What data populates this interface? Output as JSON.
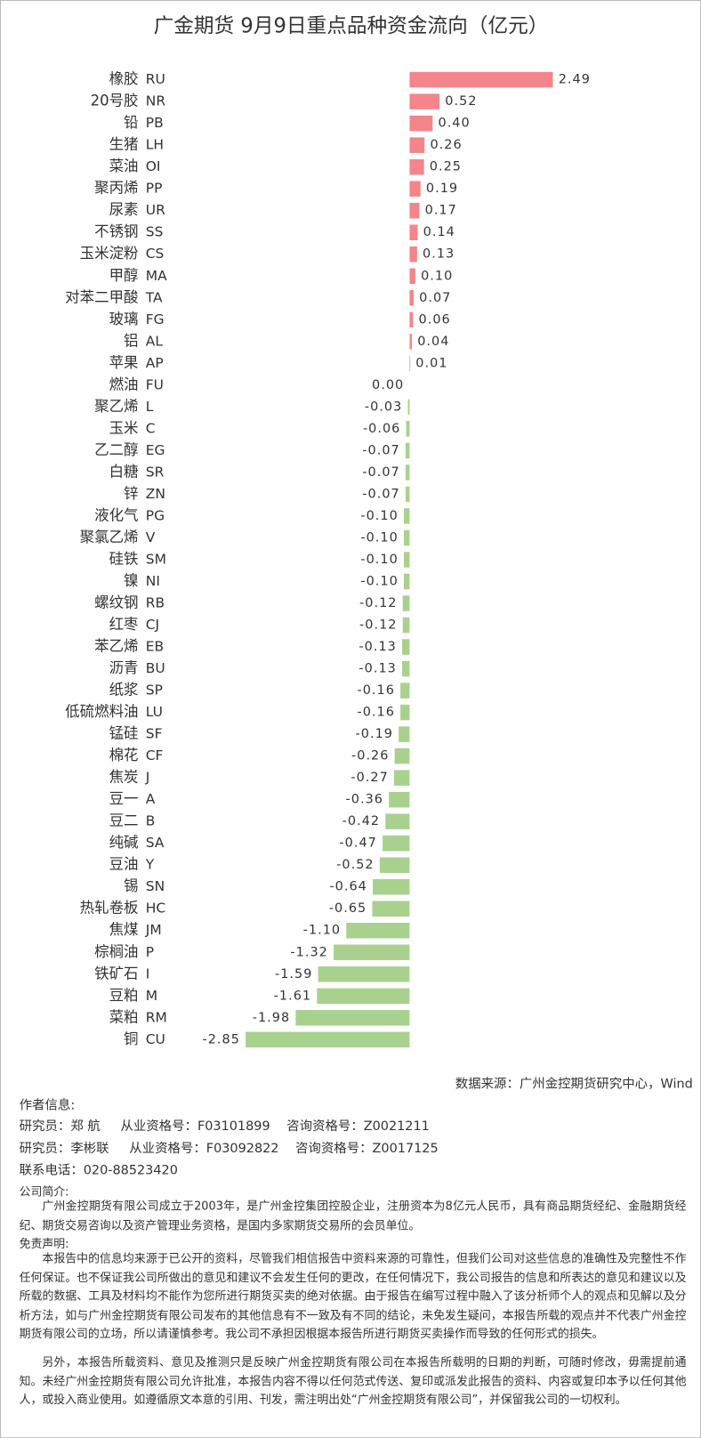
{
  "chart_data": {
    "type": "bar",
    "orientation": "horizontal",
    "title": "广金期货 9月9日重点品种资金流向（亿元）",
    "categories": [
      "橡胶",
      "20号胶",
      "铅",
      "生猪",
      "菜油",
      "聚丙烯",
      "尿素",
      "不锈钢",
      "玉米淀粉",
      "甲醇",
      "对苯二甲酸",
      "玻璃",
      "铝",
      "苹果",
      "燃油",
      "聚乙烯",
      "玉米",
      "乙二醇",
      "白糖",
      "锌",
      "液化气",
      "聚氯乙烯",
      "硅铁",
      "镍",
      "螺纹钢",
      "红枣",
      "苯乙烯",
      "沥青",
      "纸浆",
      "低硫燃料油",
      "锰硅",
      "棉花",
      "焦炭",
      "豆一",
      "豆二",
      "纯碱",
      "豆油",
      "锡",
      "热轧卷板",
      "焦煤",
      "棕榈油",
      "铁矿石",
      "豆粕",
      "菜粕",
      "铜"
    ],
    "codes": [
      "RU",
      "NR",
      "PB",
      "LH",
      "OI",
      "PP",
      "UR",
      "SS",
      "CS",
      "MA",
      "TA",
      "FG",
      "AL",
      "AP",
      "FU",
      "L",
      "C",
      "EG",
      "SR",
      "ZN",
      "PG",
      "V",
      "SM",
      "NI",
      "RB",
      "CJ",
      "EB",
      "BU",
      "SP",
      "LU",
      "SF",
      "CF",
      "J",
      "A",
      "B",
      "SA",
      "Y",
      "SN",
      "HC",
      "JM",
      "P",
      "I",
      "M",
      "RM",
      "CU"
    ],
    "values": [
      2.49,
      0.52,
      0.4,
      0.26,
      0.25,
      0.19,
      0.17,
      0.14,
      0.13,
      0.1,
      0.07,
      0.06,
      0.04,
      0.01,
      0.0,
      -0.03,
      -0.06,
      -0.07,
      -0.07,
      -0.07,
      -0.1,
      -0.1,
      -0.1,
      -0.1,
      -0.12,
      -0.12,
      -0.13,
      -0.13,
      -0.16,
      -0.16,
      -0.19,
      -0.26,
      -0.27,
      -0.36,
      -0.42,
      -0.47,
      -0.52,
      -0.64,
      -0.65,
      -1.1,
      -1.32,
      -1.59,
      -1.61,
      -1.98,
      -2.85
    ],
    "value_labels": [
      "2.49",
      "0.52",
      "0.40",
      "0.26",
      "0.25",
      "0.19",
      "0.17",
      "0.14",
      "0.13",
      "0.10",
      "0.07",
      "0.06",
      "0.04",
      "0.01",
      "0.00",
      "-0.03",
      "-0.06",
      "-0.07",
      "-0.07",
      "-0.07",
      "-0.10",
      "-0.10",
      "-0.10",
      "-0.10",
      "-0.12",
      "-0.12",
      "-0.13",
      "-0.13",
      "-0.16",
      "-0.16",
      "-0.19",
      "-0.26",
      "-0.27",
      "-0.36",
      "-0.42",
      "-0.47",
      "-0.52",
      "-0.64",
      "-0.65",
      "-1.10",
      "-1.32",
      "-1.59",
      "-1.61",
      "-1.98",
      "-2.85"
    ],
    "positive_color": "#f4858a",
    "negative_color": "#a9d18e"
  },
  "source": "数据来源：广州金控期货研究中心，Wind",
  "author_info": {
    "heading": "作者信息:",
    "researchers": [
      {
        "name": "研究员：郑 航",
        "license": "从业资格号：F03101899",
        "consult": "咨询资格号：Z0021211"
      },
      {
        "name": "研究员：李彬联",
        "license": "从业资格号：F03092822",
        "consult": "咨询资格号：Z0017125"
      }
    ],
    "phone": "联系电话：020-88523420"
  },
  "company": {
    "heading": "公司简介:",
    "text": "广州金控期货有限公司成立于2003年，是广州金控集团控股企业，注册资本为8亿元人民币，具有商品期货经纪、金融期货经纪、期货交易咨询以及资产管理业务资格，是国内多家期货交易所的会员单位。"
  },
  "disclaimer": {
    "heading": "免责声明:",
    "paragraphs": [
      "本报告中的信息均来源于已公开的资料，尽管我们相信报告中资料来源的可靠性，但我们公司对这些信息的准确性及完整性不作任何保证。也不保证我公司所做出的意见和建议不会发生任何的更改，在任何情况下，我公司报告的信息和所表达的意见和建议以及所载的数据、工具及材料均不能作为您所进行期货买卖的绝对依据。由于报告在编写过程中融入了该分析师个人的观点和见解以及分析方法，如与广州金控期货有限公司发布的其他信息有不一致及有不同的结论，未免发生疑问，本报告所载的观点并不代表广州金控期货有限公司的立场，所以请谨慎参考。我公司不承担因根据本报告所进行期货买卖操作而导致的任何形式的损失。",
      "另外，本报告所载资料、意见及推测只是反映广州金控期货有限公司在本报告所载明的日期的判断，可随时修改，毋需提前通知。未经广州金控期货有限公司允许批准，本报告内容不得以任何范式传送、复印或派发此报告的资料、内容或复印本予以任何其他人，或投入商业使用。如遵循原文本意的引用、刊发，需注明出处“广州金控期货有限公司”，并保留我公司的一切权利。"
    ]
  }
}
